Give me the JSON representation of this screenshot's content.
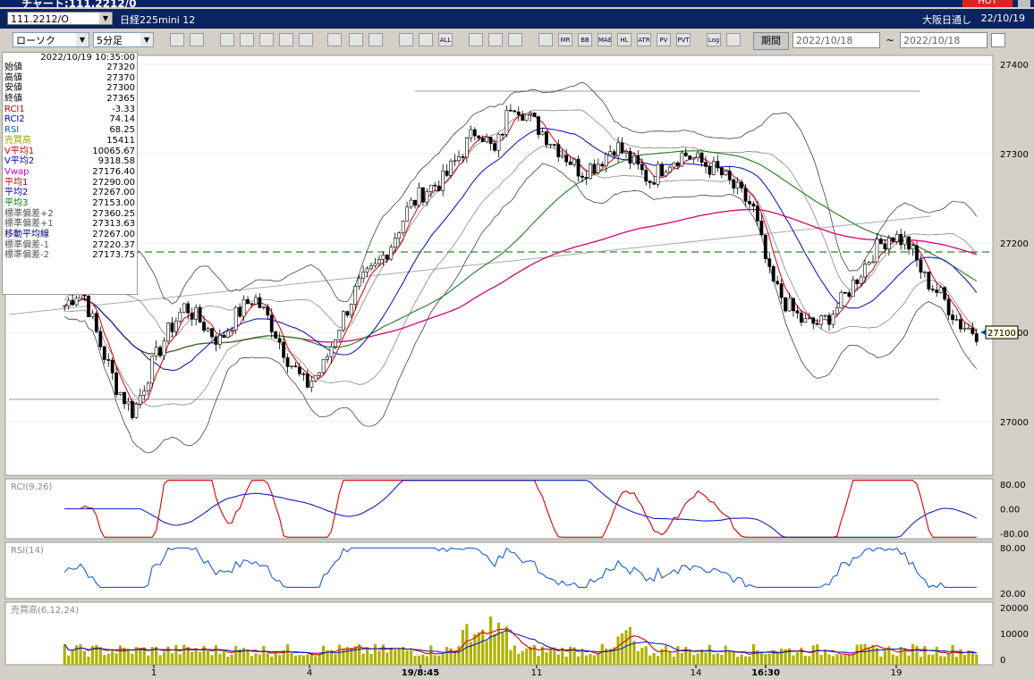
{
  "window": {
    "title": "チャート:111.2212/0",
    "hot_label": "HOT"
  },
  "symbol_bar": {
    "code": "111.2212/O",
    "name": "日経225mini 12",
    "exchange": "大阪日通し",
    "date": "22/10/19"
  },
  "toolbar": {
    "chart_type": "ローソク",
    "interval": "5分足",
    "icons": [
      "zoom-icon",
      "cursor-icon",
      "line-tool-icon",
      "fibonacci-icon",
      "candle-icon",
      "color-icon",
      "lock-icon",
      "pen-icon",
      "arrow-icon",
      "trendline-icon",
      "box-icon",
      "bar-icon",
      "all-icon",
      "gear-icon",
      "wrench-icon",
      "palette-icon",
      "ma-icon",
      "mr-icon",
      "bb-icon",
      "mae-icon",
      "hl-icon",
      "atr-icon",
      "pivot-icon",
      "pvt-icon",
      "log-icon",
      "export-icon"
    ],
    "icon_labels": [
      "",
      "",
      "",
      "",
      "",
      "",
      "",
      "",
      "",
      "",
      "",
      "",
      "ALL",
      "",
      "",
      "",
      "",
      "MR",
      "BB",
      "MAE",
      "HL",
      "ATR",
      "PV",
      "PVT",
      "Log",
      ""
    ],
    "period_button": "期間",
    "date_from": "2022/10/18",
    "date_to": "2022/10/18"
  },
  "info_panel": {
    "timestamp": "2022/10/19 10:35:00",
    "rows": [
      {
        "label": "始値",
        "value": "27320",
        "color": "#000000"
      },
      {
        "label": "高値",
        "value": "27370",
        "color": "#000000"
      },
      {
        "label": "安値",
        "value": "27300",
        "color": "#000000"
      },
      {
        "label": "終値",
        "value": "27365",
        "color": "#000000"
      },
      {
        "label": "RCI1",
        "value": "-3.33",
        "color": "#cc0000"
      },
      {
        "label": "RCI2",
        "value": "74.14",
        "color": "#0000cc"
      },
      {
        "label": "RSI",
        "value": "68.25",
        "color": "#0060c0"
      },
      {
        "label": "売買高",
        "value": "15411",
        "color": "#a0a000"
      },
      {
        "label": "V平均1",
        "value": "10065.67",
        "color": "#cc0000"
      },
      {
        "label": "V平均2",
        "value": "9318.58",
        "color": "#0000cc"
      },
      {
        "label": "Vwap",
        "value": "27176.40",
        "color": "#cc00cc"
      },
      {
        "label": "平均1",
        "value": "27290.00",
        "color": "#cc0000"
      },
      {
        "label": "平均2",
        "value": "27267.00",
        "color": "#0000cc"
      },
      {
        "label": "平均3",
        "value": "27153.00",
        "color": "#008000"
      },
      {
        "label": "標準偏差+2",
        "value": "27360.25",
        "color": "#555555"
      },
      {
        "label": "標準偏差+1",
        "value": "27313.63",
        "color": "#555555"
      },
      {
        "label": "移動平均線",
        "value": "27267.00",
        "color": "#000080"
      },
      {
        "label": "標準偏差-1",
        "value": "27220.37",
        "color": "#555555"
      },
      {
        "label": "標準偏差-2",
        "value": "27173.75",
        "color": "#555555"
      }
    ]
  },
  "chart_data": [
    {
      "type": "candlestick",
      "y_ticks": [
        "27400",
        "27300",
        "27200",
        "27100",
        "27000"
      ],
      "ylim": [
        26940,
        27410
      ],
      "price_marker": "27100",
      "dashed_level": 27190,
      "x_labels": [
        "1",
        "4",
        "19/8:45",
        "11",
        "14",
        "16:30",
        "19"
      ],
      "close_path": [
        27130,
        27150,
        27090,
        27040,
        27010,
        27060,
        27100,
        27130,
        27110,
        27090,
        27120,
        27140,
        27110,
        27070,
        27040,
        27060,
        27110,
        27150,
        27170,
        27200,
        27240,
        27260,
        27270,
        27300,
        27330,
        27300,
        27360,
        27340,
        27320,
        27300,
        27280,
        27290,
        27310,
        27290,
        27270,
        27290,
        27300,
        27290,
        27280,
        27260,
        27240,
        27160,
        27130,
        27110,
        27110,
        27130,
        27160,
        27190,
        27210,
        27200,
        27160,
        27140,
        27110,
        27100
      ]
    },
    {
      "type": "line",
      "name": "RCI(9,26)",
      "y_ticks": [
        "80.00",
        "0.00",
        "-80.00"
      ]
    },
    {
      "type": "line",
      "name": "RSI(14)",
      "y_ticks": [
        "80.00",
        "20.00"
      ]
    },
    {
      "type": "bar",
      "name": "売買高(6,12,24)",
      "y_ticks": [
        "20000",
        "10000",
        "0"
      ]
    }
  ]
}
